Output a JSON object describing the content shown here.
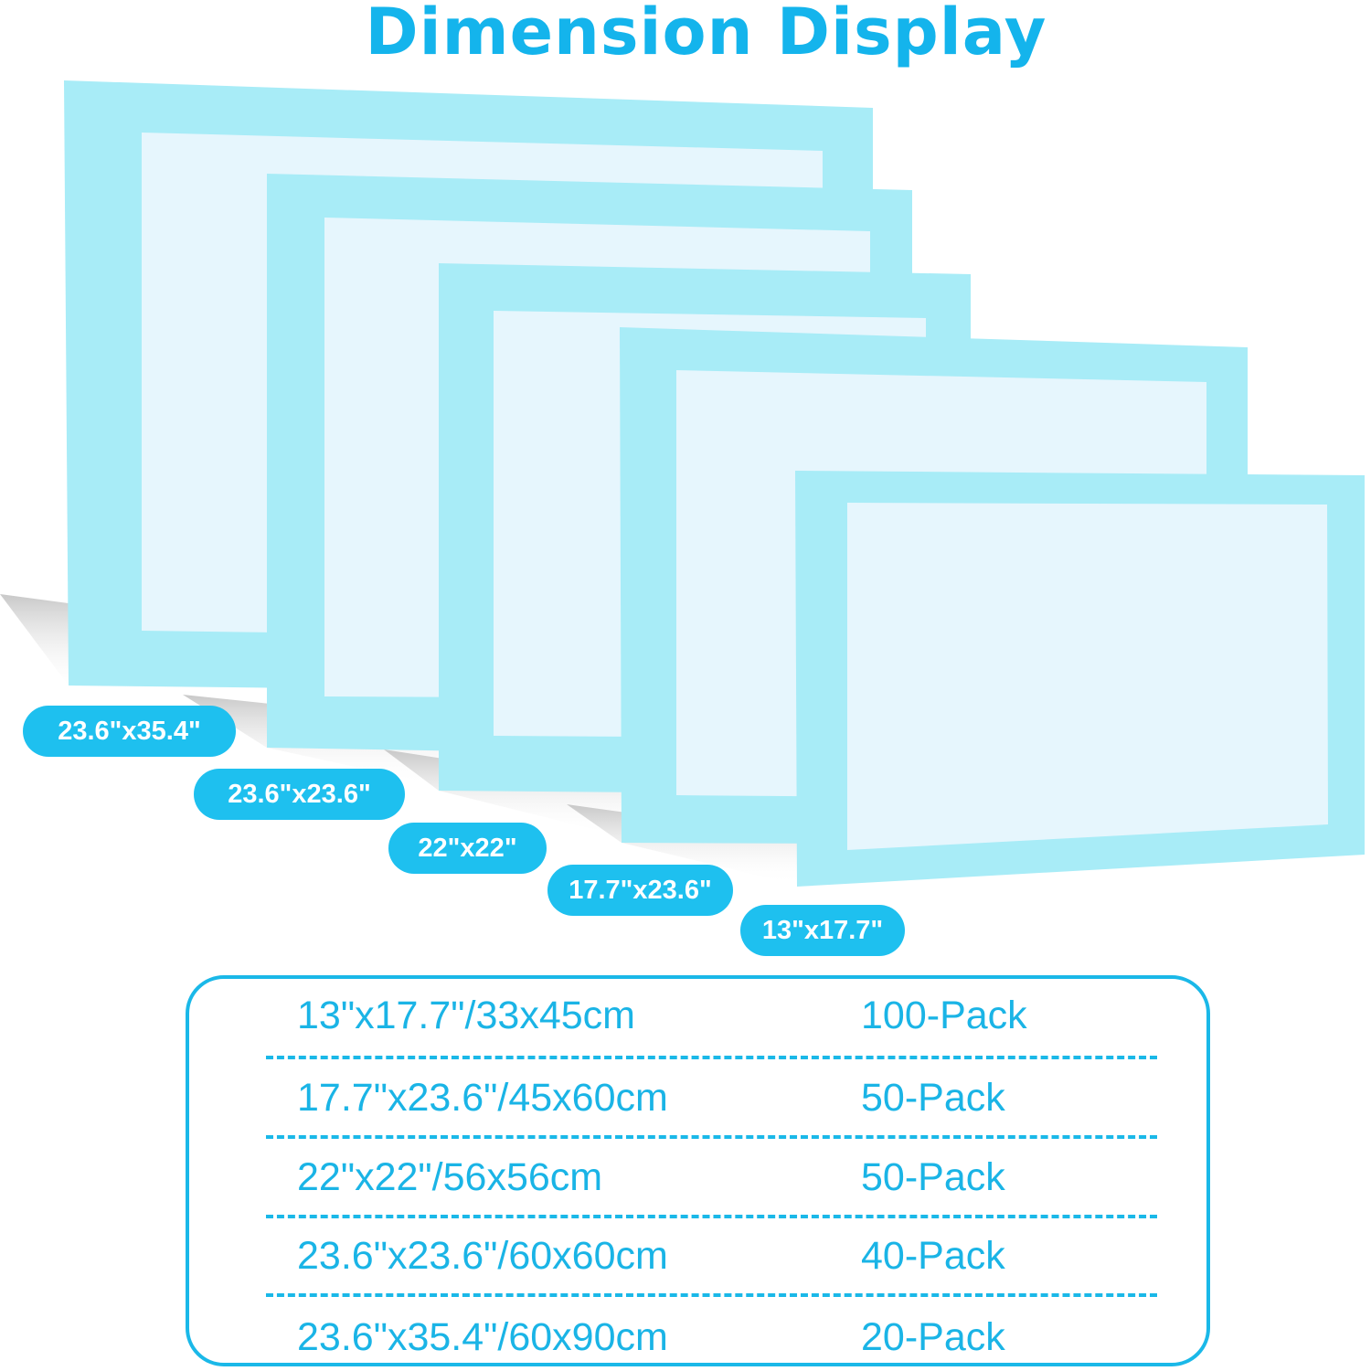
{
  "title": "Dimension Display",
  "colors": {
    "title": "#14b4ec",
    "pill": "#1ec0ef",
    "table_border": "#1ab8e8",
    "table_text": "#1ab4e6",
    "pad_border": "#a8ecf7",
    "pad_center": "#e6f6fd"
  },
  "labels": [
    "23.6\"x35.4\"",
    "23.6\"x23.6\"",
    "22\"x22\"",
    "17.7\"x23.6\"",
    "13\"x17.7\""
  ],
  "table": {
    "rows": [
      {
        "size": "13\"x17.7\"/33x45cm",
        "pack": "100-Pack"
      },
      {
        "size": "17.7\"x23.6\"/45x60cm",
        "pack": "50-Pack"
      },
      {
        "size": "22\"x22\"/56x56cm",
        "pack": "50-Pack"
      },
      {
        "size": "23.6\"x23.6\"/60x60cm",
        "pack": "40-Pack"
      },
      {
        "size": "23.6\"x35.4\"/60x90cm",
        "pack": "20-Pack"
      }
    ]
  }
}
